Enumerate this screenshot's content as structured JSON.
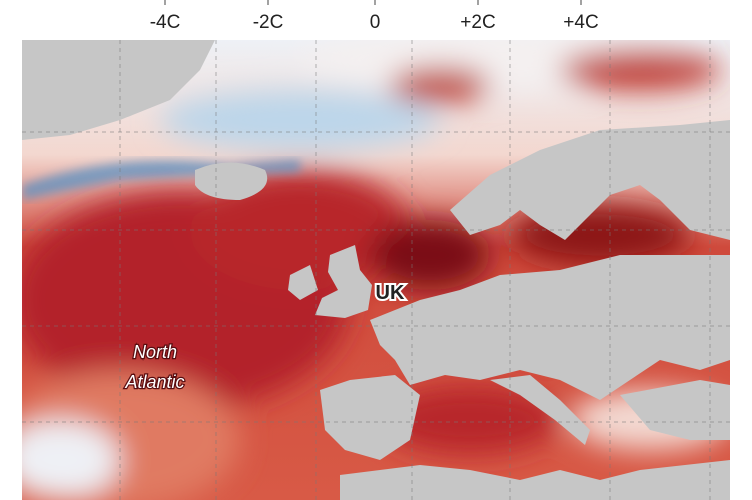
{
  "legend": {
    "ticks": [
      "-4C",
      "-2C",
      "0",
      "+2C",
      "+4C"
    ]
  },
  "labels": {
    "uk": "UK",
    "sea": [
      "North",
      "Atlantic"
    ]
  }
}
